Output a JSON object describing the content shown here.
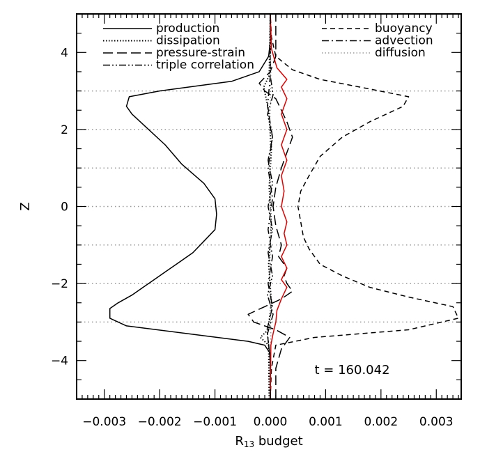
{
  "chart_data": {
    "type": "line",
    "orientation": "vertical-profile",
    "xlabel": "R",
    "xlabel_sub": "13",
    "xlabel_suffix": " budget",
    "ylabel": "Z",
    "xlim": [
      -0.0035,
      0.00345
    ],
    "ylim": [
      -5,
      5
    ],
    "x_ticks": [
      -0.003,
      -0.002,
      -0.001,
      0.0,
      0.001,
      0.002,
      0.003
    ],
    "x_tick_labels": [
      "−0.003",
      "−0.002",
      "−0.001",
      "0.000",
      "0.001",
      "0.002",
      "0.003"
    ],
    "y_ticks": [
      -4,
      -2,
      0,
      2,
      4
    ],
    "y_tick_labels": [
      "−4",
      "−2",
      "0",
      "2",
      "4"
    ],
    "hgrid": [
      -3,
      -2,
      -1,
      0,
      1,
      2,
      3
    ],
    "annotation": "t = 160.042",
    "legend_placement": "top",
    "series": [
      {
        "name": "production",
        "style": "solid",
        "color": "#000000",
        "points": [
          [
            0,
            -5
          ],
          [
            0,
            -4.2
          ],
          [
            -1e-05,
            -3.8
          ],
          [
            -0.0001,
            -3.6
          ],
          [
            -0.0004,
            -3.5
          ],
          [
            -0.0015,
            -3.3
          ],
          [
            -0.0026,
            -3.1
          ],
          [
            -0.0029,
            -2.9
          ],
          [
            -0.0029,
            -2.65
          ],
          [
            -0.00275,
            -2.5
          ],
          [
            -0.0025,
            -2.3
          ],
          [
            -0.0023,
            -2.1
          ],
          [
            -0.0021,
            -1.9
          ],
          [
            -0.0019,
            -1.7
          ],
          [
            -0.0017,
            -1.5
          ],
          [
            -0.0014,
            -1.2
          ],
          [
            -0.0012,
            -0.9
          ],
          [
            -0.001,
            -0.6
          ],
          [
            -0.00097,
            -0.2
          ],
          [
            -0.001,
            0.2
          ],
          [
            -0.0012,
            0.6
          ],
          [
            -0.0016,
            1.1
          ],
          [
            -0.0019,
            1.6
          ],
          [
            -0.0022,
            2.0
          ],
          [
            -0.0025,
            2.4
          ],
          [
            -0.0026,
            2.6
          ],
          [
            -0.00255,
            2.85
          ],
          [
            -0.002,
            3.0
          ],
          [
            -0.0007,
            3.25
          ],
          [
            -0.0002,
            3.5
          ],
          [
            -3e-05,
            3.9
          ],
          [
            0,
            4.3
          ],
          [
            0,
            5
          ]
        ]
      },
      {
        "name": "dissipation",
        "style": "dotted",
        "color": "#000000",
        "points": [
          [
            -2e-05,
            -5
          ],
          [
            -3e-05,
            -3.6
          ],
          [
            -0.00018,
            -3.4
          ],
          [
            -4e-05,
            -3.2
          ],
          [
            2e-05,
            -2.5
          ],
          [
            -3e-05,
            -1.5
          ],
          [
            2e-05,
            -0.5
          ],
          [
            -2e-05,
            0.5
          ],
          [
            2e-05,
            1.5
          ],
          [
            -3e-05,
            2.5
          ],
          [
            -0.00012,
            3.1
          ],
          [
            -2e-05,
            3.4
          ],
          [
            0,
            5
          ]
        ]
      },
      {
        "name": "pressure-strain",
        "style": "long-dash",
        "color": "#000000",
        "points": [
          [
            0.0001,
            -5
          ],
          [
            0.0001,
            -4.2
          ],
          [
            0.0002,
            -3.7
          ],
          [
            0.00035,
            -3.4
          ],
          [
            0.0001,
            -3.2
          ],
          [
            -0.0003,
            -3.0
          ],
          [
            -0.0004,
            -2.8
          ],
          [
            -0.0001,
            -2.6
          ],
          [
            0.0002,
            -2.4
          ],
          [
            0.0004,
            -2.2
          ],
          [
            0.0003,
            -2.0
          ],
          [
            0.00025,
            -1.8
          ],
          [
            0.0003,
            -1.6
          ],
          [
            0.00015,
            -1.3
          ],
          [
            0.0002,
            -1.0
          ],
          [
            0.0001,
            -0.5
          ],
          [
            5e-05,
            0
          ],
          [
            0.0001,
            0.5
          ],
          [
            0.0002,
            1.0
          ],
          [
            0.0003,
            1.4
          ],
          [
            0.0004,
            1.8
          ],
          [
            0.0003,
            2.2
          ],
          [
            0.0002,
            2.5
          ],
          [
            0.0001,
            2.8
          ],
          [
            -0.0001,
            3.0
          ],
          [
            -0.0002,
            3.2
          ],
          [
            0,
            3.5
          ],
          [
            0.0001,
            3.9
          ],
          [
            0.0001,
            4.4
          ],
          [
            0.0001,
            5
          ]
        ]
      },
      {
        "name": "triple correlation",
        "style": "dash-dot-dot",
        "color": "#000000",
        "points": [
          [
            0,
            -5
          ],
          [
            0,
            -4
          ],
          [
            -5e-05,
            -3.3
          ],
          [
            5e-05,
            -2.8
          ],
          [
            -5e-05,
            -2.3
          ],
          [
            4e-05,
            -1.8
          ],
          [
            -4e-05,
            -1.2
          ],
          [
            4e-05,
            -0.6
          ],
          [
            -4e-05,
            0
          ],
          [
            4e-05,
            0.6
          ],
          [
            -4e-05,
            1.2
          ],
          [
            4e-05,
            1.8
          ],
          [
            -5e-05,
            2.4
          ],
          [
            5e-05,
            2.9
          ],
          [
            0,
            3.4
          ],
          [
            0,
            5
          ]
        ]
      },
      {
        "name": "buoyancy",
        "style": "dash",
        "color": "#000000",
        "points": [
          [
            0,
            -5
          ],
          [
            2e-05,
            -4.2
          ],
          [
            0.0001,
            -3.6
          ],
          [
            0.0008,
            -3.4
          ],
          [
            0.0025,
            -3.2
          ],
          [
            0.0034,
            -2.9
          ],
          [
            0.0033,
            -2.6
          ],
          [
            0.0025,
            -2.35
          ],
          [
            0.0018,
            -2.1
          ],
          [
            0.0013,
            -1.8
          ],
          [
            0.0009,
            -1.5
          ],
          [
            0.0007,
            -1.1
          ],
          [
            0.0006,
            -0.8
          ],
          [
            0.00055,
            -0.4
          ],
          [
            0.0005,
            0
          ],
          [
            0.00055,
            0.4
          ],
          [
            0.0007,
            0.8
          ],
          [
            0.0009,
            1.3
          ],
          [
            0.0013,
            1.8
          ],
          [
            0.0018,
            2.2
          ],
          [
            0.0024,
            2.6
          ],
          [
            0.0025,
            2.85
          ],
          [
            0.0018,
            3.05
          ],
          [
            0.0009,
            3.3
          ],
          [
            0.0004,
            3.55
          ],
          [
            0.0001,
            3.9
          ],
          [
            2e-05,
            4.4
          ],
          [
            0,
            5
          ]
        ]
      },
      {
        "name": "advection",
        "style": "dash-dot",
        "color": "#000000",
        "points": [
          [
            0,
            -5
          ],
          [
            0,
            -4
          ],
          [
            -6e-05,
            -3.2
          ],
          [
            4e-05,
            -2.6
          ],
          [
            -4e-05,
            -2.0
          ],
          [
            4e-05,
            -1.3
          ],
          [
            -4e-05,
            -0.6
          ],
          [
            4e-05,
            0.2
          ],
          [
            -4e-05,
            1.0
          ],
          [
            4e-05,
            1.8
          ],
          [
            -5e-05,
            2.6
          ],
          [
            0,
            3.4
          ],
          [
            0,
            5
          ]
        ]
      },
      {
        "name": "diffusion",
        "style": "light-dotted",
        "color": "#888888",
        "points": [
          [
            0,
            -5
          ],
          [
            1e-05,
            -3.3
          ],
          [
            -1e-05,
            -2
          ],
          [
            1e-05,
            0
          ],
          [
            -1e-05,
            2
          ],
          [
            1e-05,
            3.3
          ],
          [
            0,
            5
          ]
        ]
      },
      {
        "name": "",
        "style": "solid",
        "color": "#e00000",
        "points": [
          [
            0,
            -5
          ],
          [
            1e-05,
            -3.6
          ],
          [
            5e-05,
            -3.3
          ],
          [
            0.0001,
            -3.0
          ],
          [
            0.00012,
            -2.7
          ],
          [
            0.0002,
            -2.4
          ],
          [
            0.0003,
            -2.1
          ],
          [
            0.0002,
            -1.9
          ],
          [
            0.0003,
            -1.6
          ],
          [
            0.0002,
            -1.3
          ],
          [
            0.0003,
            -1.0
          ],
          [
            0.00025,
            -0.7
          ],
          [
            0.0003,
            -0.4
          ],
          [
            0.0002,
            0
          ],
          [
            0.00025,
            0.4
          ],
          [
            0.0002,
            0.8
          ],
          [
            0.0003,
            1.2
          ],
          [
            0.0002,
            1.6
          ],
          [
            0.0003,
            2.0
          ],
          [
            0.0002,
            2.4
          ],
          [
            0.0003,
            2.8
          ],
          [
            0.0002,
            3.1
          ],
          [
            0.0003,
            3.3
          ],
          [
            0.00012,
            3.6
          ],
          [
            2e-05,
            4.1
          ],
          [
            0,
            5
          ]
        ]
      }
    ]
  }
}
